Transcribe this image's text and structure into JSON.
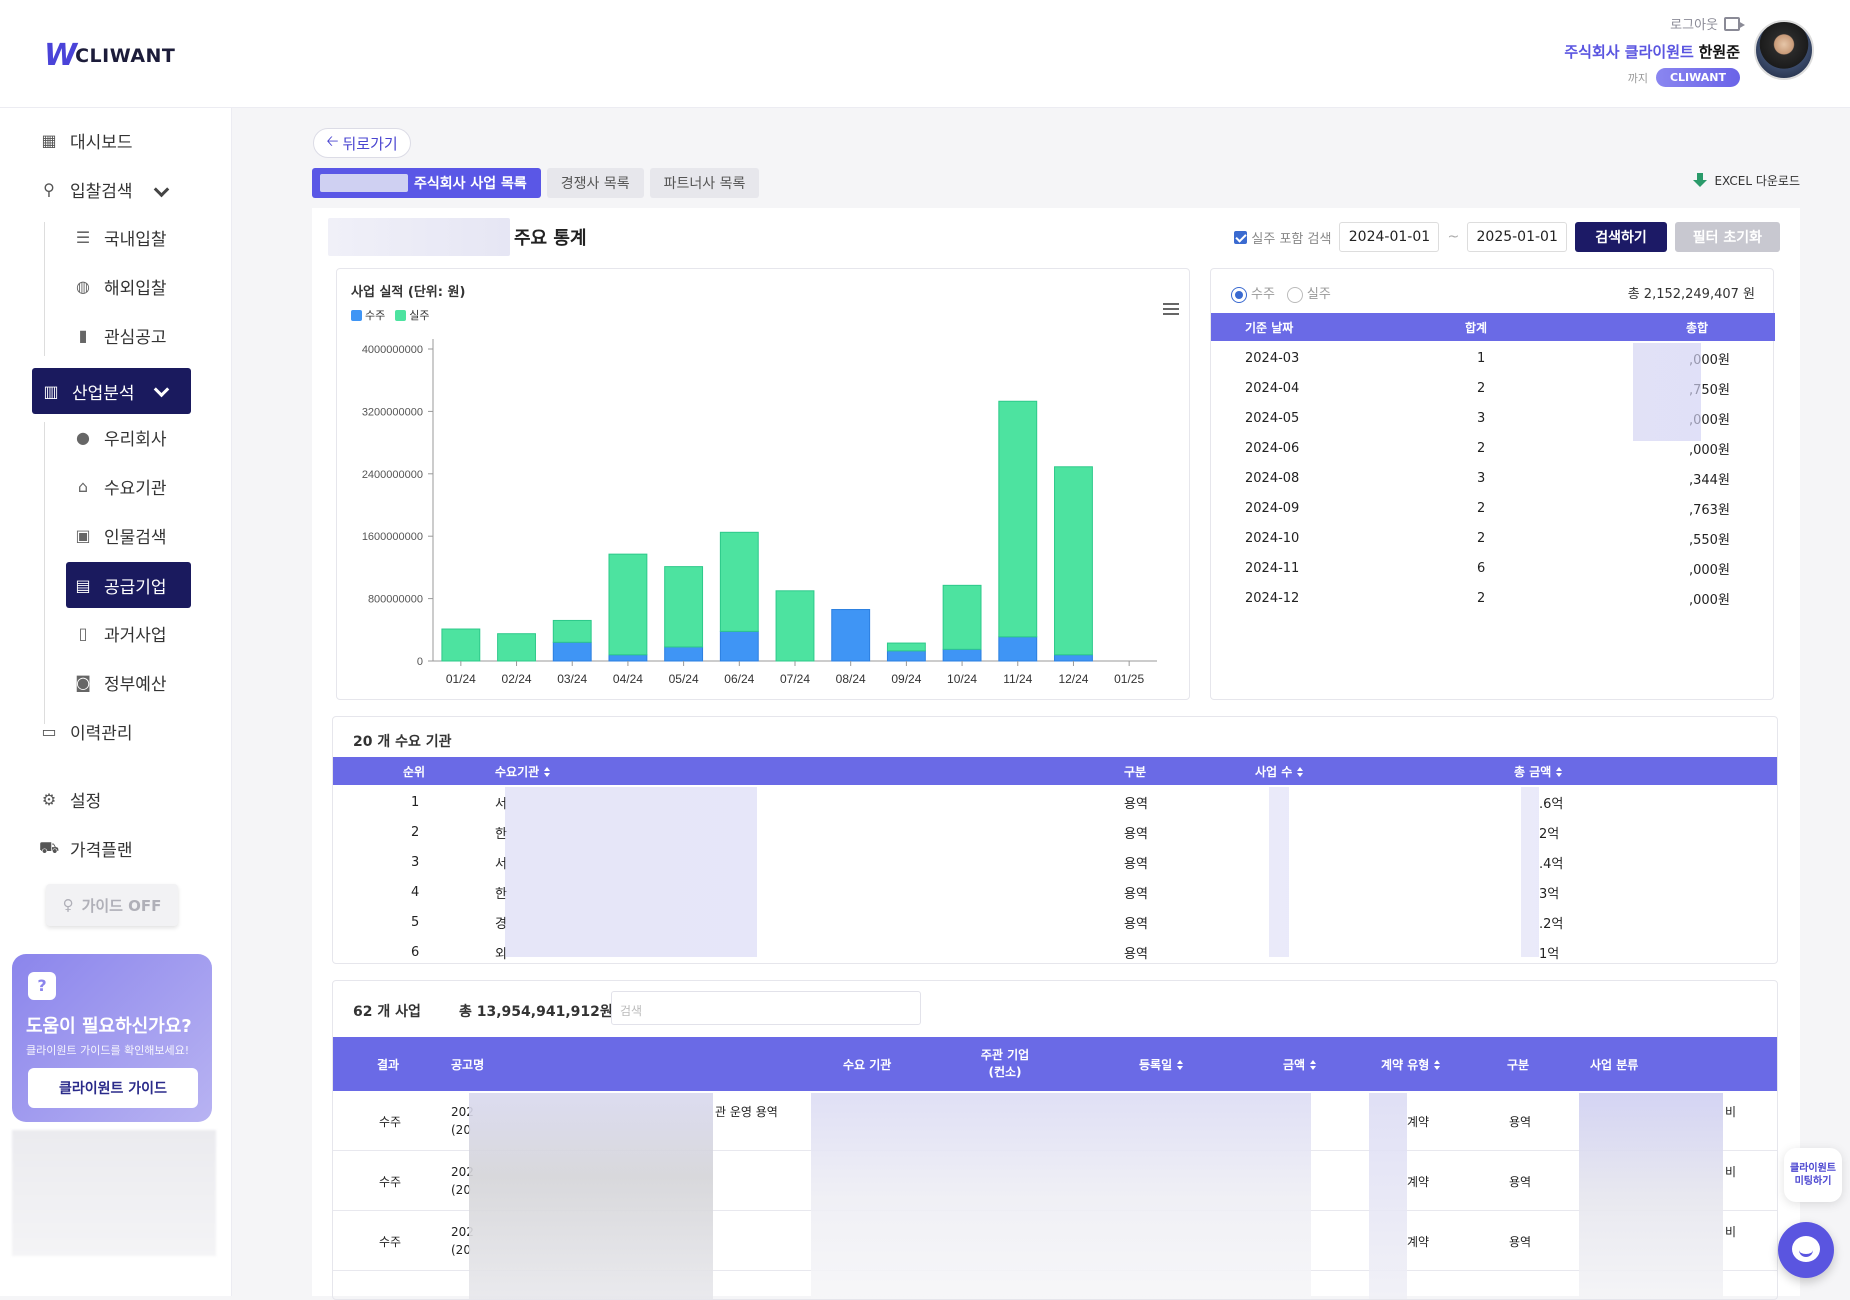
{
  "header": {
    "logo_text": "CLIWANT",
    "logout_label": "로그아웃",
    "company": "주식회사 클라이원트",
    "user_name": "한원준",
    "until_label": "까지",
    "plan_badge": "CLIWANT"
  },
  "sidebar": {
    "items": [
      {
        "label": "대시보드",
        "icon": "grid-icon"
      },
      {
        "label": "입찰검색",
        "icon": "search-icon"
      },
      {
        "label": "국내입찰",
        "icon": "list-icon"
      },
      {
        "label": "해외입찰",
        "icon": "globe-icon"
      },
      {
        "label": "관심공고",
        "icon": "bookmark-icon"
      },
      {
        "label": "산업분석",
        "icon": "bar-chart-icon"
      },
      {
        "label": "우리회사",
        "icon": "user-icon"
      },
      {
        "label": "수요기관",
        "icon": "institution-icon"
      },
      {
        "label": "인물검색",
        "icon": "id-card-icon"
      },
      {
        "label": "공급기업",
        "icon": "building-icon"
      },
      {
        "label": "과거사업",
        "icon": "document-icon"
      },
      {
        "label": "정부예산",
        "icon": "money-icon"
      },
      {
        "label": "이력관리",
        "icon": "monitor-icon"
      },
      {
        "label": "설정",
        "icon": "gear-icon"
      },
      {
        "label": "가격플랜",
        "icon": "cart-icon"
      }
    ],
    "guide_toggle": "가이드 OFF",
    "help": {
      "title": "도움이 필요하신가요?",
      "subtitle": "클라이원트 가이드를 확인해보세요!",
      "button": "클라이원트 가이드"
    }
  },
  "main": {
    "back_label": "뒤로가기",
    "tabs": [
      "주식회사 사업 목록",
      "경쟁사 목록",
      "파트너사 목록"
    ],
    "excel_label": "EXCEL 다운로드",
    "stats_title": "주요 통계",
    "filter": {
      "include_lost_label": "실주 포함 검색",
      "start_date": "2024-01-01",
      "tilde": "~",
      "end_date": "2025-01-01",
      "search_button": "검색하기",
      "reset_button": "필터 초기화"
    }
  },
  "chart_data": {
    "type": "bar",
    "stacked": true,
    "title": "사업 실적 (단위: 원)",
    "categories": [
      "01/24",
      "02/24",
      "03/24",
      "04/24",
      "05/24",
      "06/24",
      "07/24",
      "08/24",
      "09/24",
      "10/24",
      "11/24",
      "12/24",
      "01/25"
    ],
    "series": [
      {
        "name": "수주",
        "color": "#3f95f5",
        "values": [
          0,
          0,
          240000000,
          80000000,
          180000000,
          380000000,
          0,
          660000000,
          130000000,
          150000000,
          310000000,
          80000000,
          0
        ]
      },
      {
        "name": "실주",
        "color": "#4de3a0",
        "values": [
          410000000,
          350000000,
          280000000,
          1290000000,
          1030000000,
          1270000000,
          900000000,
          0,
          100000000,
          820000000,
          3020000000,
          2410000000,
          0
        ]
      }
    ],
    "y_ticks": [
      "0",
      "800000000",
      "1600000000",
      "2400000000",
      "3200000000",
      "4000000000"
    ],
    "ylim": [
      0,
      4000000000
    ]
  },
  "summary": {
    "radio_win": "수주",
    "radio_lose": "실주",
    "total_label": "총 2,152,249,407 원",
    "columns": [
      "기준 날짜",
      "합계",
      "총합"
    ],
    "rows": [
      {
        "date": "2024-03",
        "count": "1",
        "sum": ",000원"
      },
      {
        "date": "2024-04",
        "count": "2",
        "sum": ",750원"
      },
      {
        "date": "2024-05",
        "count": "3",
        "sum": ",000원"
      },
      {
        "date": "2024-06",
        "count": "2",
        "sum": ",000원"
      },
      {
        "date": "2024-08",
        "count": "3",
        "sum": ",344원"
      },
      {
        "date": "2024-09",
        "count": "2",
        "sum": ",763원"
      },
      {
        "date": "2024-10",
        "count": "2",
        "sum": ",550원"
      },
      {
        "date": "2024-11",
        "count": "6",
        "sum": ",000원"
      },
      {
        "date": "2024-12",
        "count": "2",
        "sum": ",000원"
      }
    ]
  },
  "agencies": {
    "caption": "20 개 수요 기관",
    "columns": [
      "순위",
      "수요기관",
      "구분",
      "사업 수",
      "총 금액"
    ],
    "rows": [
      {
        "rank": "1",
        "name": "서",
        "type": "용역",
        "amount": ".6억"
      },
      {
        "rank": "2",
        "name": "한",
        "type": "용역",
        "amount": "2억"
      },
      {
        "rank": "3",
        "name": "서",
        "type": "용역",
        "amount": ".4억"
      },
      {
        "rank": "4",
        "name": "한",
        "type": "용역",
        "amount": "3억"
      },
      {
        "rank": "5",
        "name": "경",
        "type": "용역",
        "amount": ".2억"
      },
      {
        "rank": "6",
        "name": "외",
        "type": "용역",
        "amount": "1억"
      }
    ]
  },
  "projects": {
    "count": "62 개 사업",
    "total": "총 13,954,941,912원",
    "search_placeholder": "검색",
    "columns": [
      "결과",
      "공고명",
      "수요 기관",
      "주관 기업\n(컨소)",
      "등록일",
      "금액",
      "계약 유형",
      "구분",
      "사업 분류"
    ],
    "rows": [
      {
        "result": "수주",
        "title_a": "202",
        "title_b": "(20",
        "title_tail": "관 운영 용역",
        "contract": "계약",
        "type": "용역",
        "category": "비"
      },
      {
        "result": "수주",
        "title_a": "202",
        "title_b": "(20",
        "title_tail": "",
        "contract": "계약",
        "type": "용역",
        "category": "비"
      },
      {
        "result": "수주",
        "title_a": "202",
        "title_b": "(20",
        "title_tail": "",
        "contract": "계약",
        "type": "용역",
        "category": "비"
      }
    ]
  },
  "float": {
    "meeting": "클라이원트 미팅하기"
  }
}
